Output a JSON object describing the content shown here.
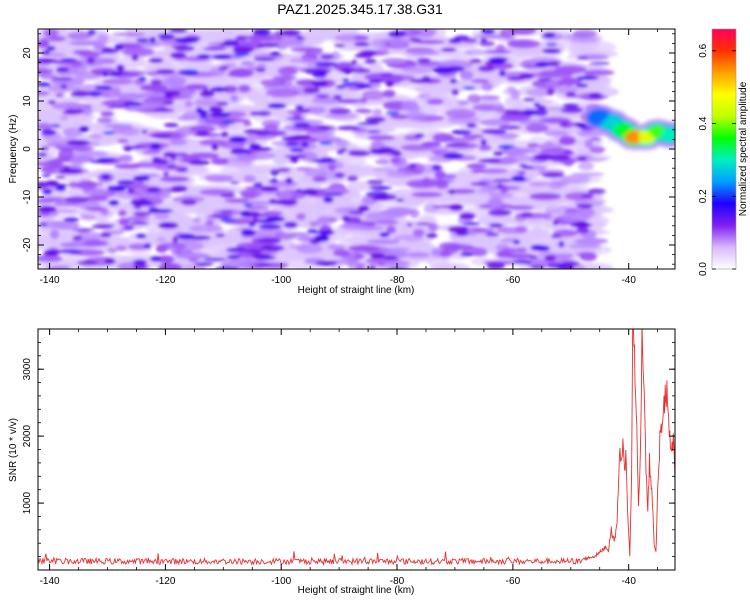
{
  "title": "PAZ1.2025.345.17.38.G31",
  "chart_data": [
    {
      "type": "heatmap",
      "panel": "spectrogram",
      "xlabel": "Height of straight line (km)",
      "ylabel": "Frequency (Hz)",
      "xlim": [
        -142,
        -32
      ],
      "ylim": [
        -25,
        25
      ],
      "x_ticks": [
        -140,
        -120,
        -100,
        -80,
        -60,
        -40
      ],
      "x_tick_labels": [
        "-140",
        "-120",
        "-100",
        "-80",
        "-60",
        "-40"
      ],
      "y_ticks": [
        -20,
        -10,
        0,
        10,
        20
      ],
      "y_tick_labels": [
        "-20",
        "-10",
        "0",
        "10",
        "20"
      ],
      "noise_region_x": [
        -142,
        -45
      ],
      "signal_band": [
        {
          "x": -45,
          "freq": 6.5,
          "amp": 0.22
        },
        {
          "x": -43,
          "freq": 5.5,
          "amp": 0.28
        },
        {
          "x": -41,
          "freq": 4.0,
          "amp": 0.35
        },
        {
          "x": -39,
          "freq": 2.5,
          "amp": 0.55
        },
        {
          "x": -37,
          "freq": 2.5,
          "amp": 0.45
        },
        {
          "x": -35,
          "freq": 3.5,
          "amp": 0.38
        },
        {
          "x": -33,
          "freq": 3.0,
          "amp": 0.3
        }
      ],
      "colorbar": {
        "label": "Normalized spectral amplitude",
        "range": [
          0,
          0.66
        ],
        "ticks": [
          0.0,
          0.2,
          0.4,
          0.6
        ],
        "tick_labels": [
          "0.0",
          "0.2",
          "0.4",
          "0.6"
        ],
        "colors": [
          "#ffffff",
          "#d8b8ff",
          "#8020f0",
          "#2000ff",
          "#00a0ff",
          "#00f0c0",
          "#00ff00",
          "#c0ff00",
          "#ffff00",
          "#ffa000",
          "#ff3000",
          "#ff0060"
        ]
      }
    },
    {
      "type": "line",
      "panel": "snr",
      "xlabel": "Height of straight line (km)",
      "ylabel": "SNR (10 * v/v)",
      "xlim": [
        -142,
        -32
      ],
      "ylim": [
        0,
        3600
      ],
      "x_ticks": [
        -140,
        -120,
        -100,
        -80,
        -60,
        -40
      ],
      "x_tick_labels": [
        "-140",
        "-120",
        "-100",
        "-80",
        "-60",
        "-40"
      ],
      "y_ticks": [
        1000,
        2000,
        3000
      ],
      "y_tick_labels": [
        "1000",
        "2000",
        "3000"
      ],
      "line_color": "#e83030",
      "baseline_level": 130,
      "baseline_noise": 45,
      "points": [
        {
          "x": -48,
          "y": 160
        },
        {
          "x": -46,
          "y": 200
        },
        {
          "x": -45,
          "y": 260
        },
        {
          "x": -44,
          "y": 350
        },
        {
          "x": -43.5,
          "y": 300
        },
        {
          "x": -43,
          "y": 600
        },
        {
          "x": -42.5,
          "y": 420
        },
        {
          "x": -42,
          "y": 700
        },
        {
          "x": -41.5,
          "y": 1950
        },
        {
          "x": -41.2,
          "y": 1500
        },
        {
          "x": -41,
          "y": 1900
        },
        {
          "x": -40.7,
          "y": 1400
        },
        {
          "x": -40.5,
          "y": 1850
        },
        {
          "x": -40.2,
          "y": 900
        },
        {
          "x": -39.8,
          "y": 200
        },
        {
          "x": -39.5,
          "y": 1400
        },
        {
          "x": -39.3,
          "y": 3600
        },
        {
          "x": -39,
          "y": 3300
        },
        {
          "x": -38.6,
          "y": 2100
        },
        {
          "x": -38.3,
          "y": 900
        },
        {
          "x": -38,
          "y": 1700
        },
        {
          "x": -37.7,
          "y": 3450
        },
        {
          "x": -37.4,
          "y": 3000
        },
        {
          "x": -37,
          "y": 1500
        },
        {
          "x": -36.7,
          "y": 900
        },
        {
          "x": -36.4,
          "y": 1600
        },
        {
          "x": -36,
          "y": 1200
        },
        {
          "x": -35.6,
          "y": 400
        },
        {
          "x": -35.3,
          "y": 250
        },
        {
          "x": -35,
          "y": 1100
        },
        {
          "x": -34.6,
          "y": 1900
        },
        {
          "x": -34.2,
          "y": 2300
        },
        {
          "x": -33.8,
          "y": 2550
        },
        {
          "x": -33.4,
          "y": 2600
        },
        {
          "x": -33,
          "y": 2100
        },
        {
          "x": -32.6,
          "y": 1600
        },
        {
          "x": -32.3,
          "y": 2000
        },
        {
          "x": -32,
          "y": 1300
        }
      ]
    }
  ]
}
